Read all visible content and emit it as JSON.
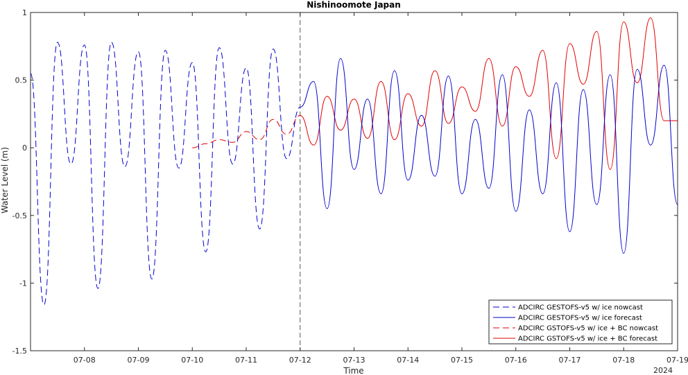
{
  "chart_data": {
    "type": "line",
    "title": "Nishinoomote Japan",
    "xlabel": "Time",
    "ylabel": "Water Level (m)",
    "year_label": "2024",
    "x_tick_labels": [
      "07-08",
      "07-09",
      "07-10",
      "07-11",
      "07-12",
      "07-13",
      "07-14",
      "07-15",
      "07-16",
      "07-17",
      "07-18",
      "07-19"
    ],
    "x_ticks": [
      "2024-07-08",
      "2024-07-09",
      "2024-07-10",
      "2024-07-11",
      "2024-07-12",
      "2024-07-13",
      "2024-07-14",
      "2024-07-15",
      "2024-07-16",
      "2024-07-17",
      "2024-07-18",
      "2024-07-19"
    ],
    "y_ticks": [
      1,
      0.5,
      0,
      -0.5,
      -1,
      -1.5
    ],
    "y_tick_labels": [
      "1",
      "0.5",
      "0",
      "-0.5",
      "-1",
      "-1.5"
    ],
    "xlim": [
      "2024-07-07 00:00",
      "2024-07-19 00:00"
    ],
    "ylim": [
      -1.5,
      1
    ],
    "nowcast_forecast_boundary": "2024-07-12 00:00",
    "grid": false,
    "legend_position": "bottom-right",
    "series": [
      {
        "name": "ADCIRC GESTOFS-v5 w/ ice nowcast",
        "color": "#0000cc",
        "style": "dashed",
        "x": [
          "07-07 00:00",
          "07-07 06:00",
          "07-07 12:00",
          "07-07 18:00",
          "07-08 00:00",
          "07-08 06:00",
          "07-08 12:00",
          "07-08 18:00",
          "07-09 00:00",
          "07-09 06:00",
          "07-09 12:00",
          "07-09 18:00",
          "07-10 00:00",
          "07-10 06:00",
          "07-10 12:00",
          "07-10 18:00",
          "07-11 00:00",
          "07-11 06:00",
          "07-11 12:00",
          "07-11 18:00",
          "07-12 00:00"
        ],
        "y": [
          0.55,
          -1.16,
          0.78,
          -0.12,
          0.76,
          -1.04,
          0.78,
          -0.14,
          0.71,
          -0.97,
          0.72,
          -0.15,
          0.63,
          -0.77,
          0.74,
          -0.12,
          0.59,
          -0.6,
          0.73,
          -0.08,
          0.3
        ]
      },
      {
        "name": "ADCIRC GESTOFS-v5 w/ ice forecast",
        "color": "#0000cc",
        "style": "solid",
        "x": [
          "07-12 00:00",
          "07-12 06:00",
          "07-12 12:00",
          "07-12 18:00",
          "07-13 00:00",
          "07-13 06:00",
          "07-13 12:00",
          "07-13 18:00",
          "07-14 00:00",
          "07-14 06:00",
          "07-14 12:00",
          "07-14 18:00",
          "07-15 00:00",
          "07-15 06:00",
          "07-15 12:00",
          "07-15 18:00",
          "07-16 00:00",
          "07-16 06:00",
          "07-16 12:00",
          "07-16 18:00",
          "07-17 00:00",
          "07-17 06:00",
          "07-17 12:00",
          "07-17 18:00",
          "07-18 00:00",
          "07-18 06:00",
          "07-18 12:00",
          "07-18 18:00",
          "07-19 00:00"
        ],
        "y": [
          0.3,
          0.49,
          -0.45,
          0.66,
          -0.16,
          0.36,
          -0.34,
          0.57,
          -0.24,
          0.24,
          -0.21,
          0.53,
          -0.34,
          0.21,
          -0.3,
          0.54,
          -0.47,
          0.28,
          -0.34,
          0.48,
          -0.62,
          0.43,
          -0.42,
          0.54,
          -0.78,
          0.58,
          0.02,
          0.61,
          -0.42
        ]
      },
      {
        "name": "ADCIRC GSTOFS-v5 w/ ice + BC nowcast",
        "color": "#e00000",
        "style": "dashed",
        "x": [
          "07-10 00:00",
          "07-10 06:00",
          "07-10 12:00",
          "07-10 18:00",
          "07-11 00:00",
          "07-11 06:00",
          "07-11 12:00",
          "07-11 18:00",
          "07-12 00:00"
        ],
        "y": [
          0.0,
          0.03,
          0.06,
          0.04,
          0.12,
          0.06,
          0.21,
          0.1,
          0.24
        ]
      },
      {
        "name": "ADCIRC GSTOFS-v5 w/ ice + BC forecast",
        "color": "#e00000",
        "style": "solid",
        "x": [
          "07-12 00:00",
          "07-12 06:00",
          "07-12 12:00",
          "07-12 18:00",
          "07-13 00:00",
          "07-13 06:00",
          "07-13 12:00",
          "07-13 18:00",
          "07-14 00:00",
          "07-14 06:00",
          "07-14 12:00",
          "07-14 18:00",
          "07-15 00:00",
          "07-15 06:00",
          "07-15 12:00",
          "07-15 18:00",
          "07-16 00:00",
          "07-16 06:00",
          "07-16 12:00",
          "07-16 18:00",
          "07-17 00:00",
          "07-17 06:00",
          "07-17 12:00",
          "07-17 18:00",
          "07-18 00:00",
          "07-18 06:00",
          "07-18 12:00",
          "07-18 18:00",
          "07-19 00:00"
        ],
        "y": [
          0.24,
          0.02,
          0.38,
          0.13,
          0.36,
          0.07,
          0.49,
          0.06,
          0.4,
          0.16,
          0.57,
          0.18,
          0.45,
          0.27,
          0.66,
          0.16,
          0.6,
          0.38,
          0.72,
          -0.08,
          0.77,
          0.47,
          0.86,
          -0.16,
          0.93,
          0.48,
          0.96,
          0.2,
          0.2
        ]
      }
    ]
  }
}
